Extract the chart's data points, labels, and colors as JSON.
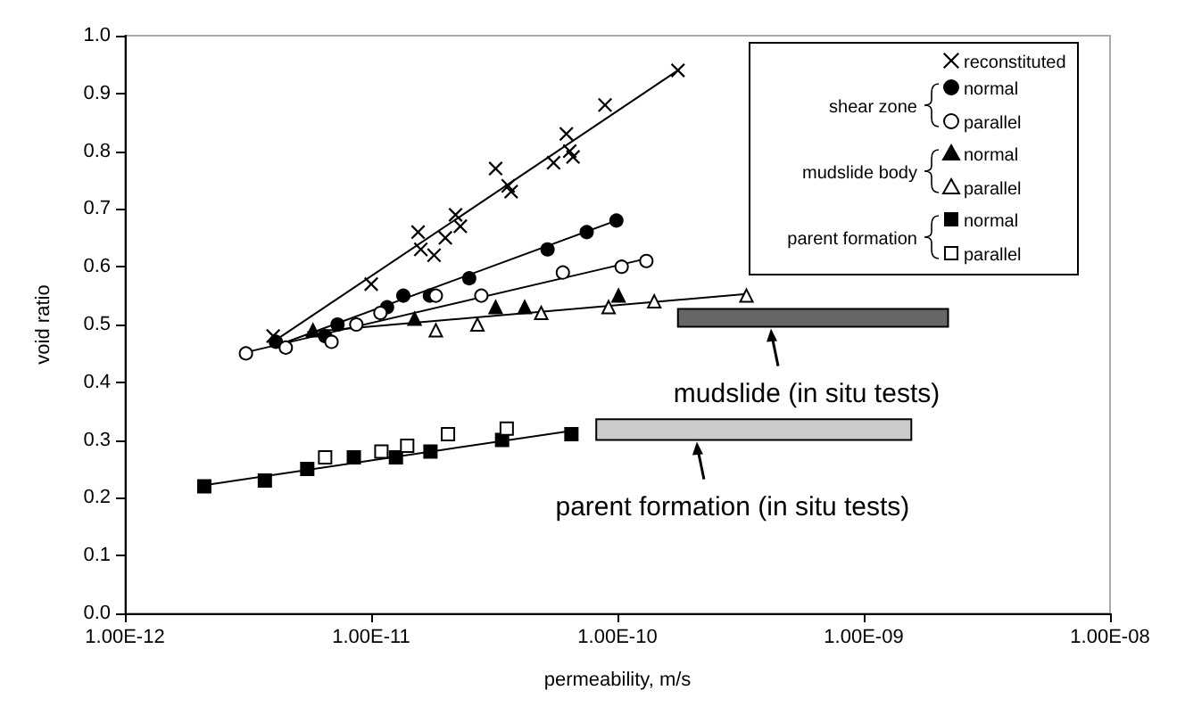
{
  "chart_data": {
    "type": "scatter",
    "xlabel": "permeability, m/s",
    "ylabel": "void ratio",
    "log": "x",
    "xlim": [
      1e-12,
      1e-08
    ],
    "xticks": [
      {
        "value": 1e-12,
        "label": "1.00E-12"
      },
      {
        "value": 1e-11,
        "label": "1.00E-11"
      },
      {
        "value": 1e-10,
        "label": "1.00E-10"
      },
      {
        "value": 1e-09,
        "label": "1.00E-09"
      },
      {
        "value": 1e-08,
        "label": "1.00E-08"
      }
    ],
    "ylim": [
      0,
      1
    ],
    "yticks": [
      {
        "value": 0,
        "label": "0.0"
      },
      {
        "value": 0.1,
        "label": "0.1"
      },
      {
        "value": 0.2,
        "label": "0.2"
      },
      {
        "value": 0.3,
        "label": "0.3"
      },
      {
        "value": 0.4,
        "label": "0.4"
      },
      {
        "value": 0.5,
        "label": "0.5"
      },
      {
        "value": 0.6,
        "label": "0.6"
      },
      {
        "value": 0.7,
        "label": "0.7"
      },
      {
        "value": 0.8,
        "label": "0.8"
      },
      {
        "value": 0.9,
        "label": "0.9"
      },
      {
        "value": 1,
        "label": "1.0"
      }
    ],
    "grid": false,
    "legend": "top right",
    "series": [
      {
        "name": "reconstituted",
        "marker": "cross",
        "color": "#000000",
        "x": [
          4e-12,
          1e-11,
          1.55e-11,
          1.59e-11,
          1.8e-11,
          2e-11,
          2.2e-11,
          2.3e-11,
          3.2e-11,
          3.6e-11,
          3.7e-11,
          5.5e-11,
          6.2e-11,
          6.4e-11,
          6.6e-11,
          8.9e-11,
          1.76e-10
        ],
        "values": [
          0.48,
          0.57,
          0.66,
          0.63,
          0.62,
          0.65,
          0.69,
          0.67,
          0.77,
          0.74,
          0.73,
          0.78,
          0.83,
          0.8,
          0.79,
          0.88,
          0.94
        ]
      },
      {
        "name": "normal",
        "marker": "circle",
        "color": "#000000",
        "x": [
          4.1e-12,
          6.5e-12,
          7.3e-12,
          1.16e-11,
          1.35e-11,
          1.73e-11,
          2.5e-11,
          5.2e-11,
          7.5e-11,
          9.9e-11
        ],
        "values": [
          0.47,
          0.48,
          0.5,
          0.53,
          0.55,
          0.55,
          0.58,
          0.63,
          0.66,
          0.68
        ]
      },
      {
        "name": "parallel",
        "marker": "circle",
        "color": "#ffffff",
        "x": [
          3.1e-12,
          4.5e-12,
          6.9e-12,
          8.7e-12,
          1.09e-11,
          1.83e-11,
          2.8e-11,
          6e-11,
          1.04e-10,
          1.31e-10
        ],
        "values": [
          0.45,
          0.46,
          0.47,
          0.5,
          0.52,
          0.55,
          0.55,
          0.59,
          0.6,
          0.61
        ]
      },
      {
        "name": "normal",
        "marker": "triangle",
        "color": "#000000",
        "x": [
          5.8e-12,
          1.5e-11,
          3.2e-11,
          4.2e-11,
          1.01e-10
        ],
        "values": [
          0.49,
          0.51,
          0.53,
          0.53,
          0.55
        ]
      },
      {
        "name": "parallel",
        "marker": "triangle",
        "color": "#ffffff",
        "x": [
          1.83e-11,
          2.7e-11,
          4.9e-11,
          9.2e-11,
          1.41e-10,
          3.34e-10
        ],
        "values": [
          0.49,
          0.5,
          0.52,
          0.53,
          0.54,
          0.55
        ]
      },
      {
        "name": "normal",
        "marker": "square",
        "color": "#000000",
        "x": [
          2.1e-12,
          3.7e-12,
          5.5e-12,
          8.5e-12,
          1.26e-11,
          1.74e-11,
          3.4e-11,
          6.5e-11
        ],
        "values": [
          0.22,
          0.23,
          0.25,
          0.27,
          0.27,
          0.28,
          0.3,
          0.31
        ]
      },
      {
        "name": "parallel",
        "marker": "square",
        "color": "#ffffff",
        "x": [
          6.5e-12,
          1.1e-11,
          1.4e-11,
          2.05e-11,
          3.55e-11
        ],
        "values": [
          0.27,
          0.28,
          0.29,
          0.31,
          0.32
        ]
      },
      {
        "type": "line",
        "marker": "none",
        "color": "#000000",
        "x": [
          4e-12,
          1.76e-10
        ],
        "values": [
          0.47,
          0.94
        ]
      },
      {
        "type": "line",
        "marker": "none",
        "color": "#000000",
        "x": [
          4.1e-12,
          9.9e-11
        ],
        "values": [
          0.463,
          0.68
        ]
      },
      {
        "type": "line",
        "marker": "none",
        "color": "#000000",
        "x": [
          3.1e-12,
          1.31e-10
        ],
        "values": [
          0.452,
          0.614
        ]
      },
      {
        "type": "line",
        "marker": "none",
        "color": "#000000",
        "x": [
          5.5e-12,
          3.34e-10
        ],
        "values": [
          0.487,
          0.553
        ]
      },
      {
        "type": "line",
        "marker": "none",
        "color": "#000000",
        "x": [
          2.1e-12,
          6.5e-11
        ],
        "values": [
          0.222,
          0.316
        ]
      },
      {
        "type": "line",
        "marker": "none",
        "color": "#666666",
        "x": [
          1.76e-10,
          2.2e-09
        ],
        "values": [
          null,
          null
        ],
        "lower": [
          0.496,
          0.496
        ],
        "upper": [
          0.527,
          0.527
        ]
      },
      {
        "type": "line",
        "marker": "none",
        "color": "#cccccc",
        "x": [
          8.2e-11,
          1.56e-09
        ],
        "values": [
          null,
          null
        ],
        "lower": [
          0.3,
          0.3
        ],
        "upper": [
          0.336,
          0.336
        ]
      }
    ],
    "annotations": [
      "shear zone",
      "mudslide body",
      "parent formation",
      {
        "text": "mudslide (in situ tests)",
        "x": 4.2e-10,
        "y": 0.496
      },
      {
        "text": "parent formation (in situ tests)",
        "x": 2.1e-10,
        "y": 0.3
      }
    ]
  }
}
